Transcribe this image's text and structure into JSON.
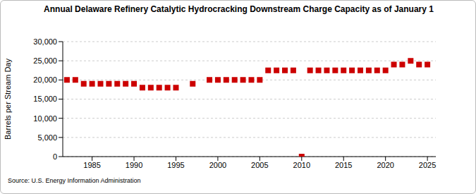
{
  "chart_data": {
    "type": "scatter",
    "title": "Annual Delaware Refinery Catalytic Hydrocracking Downstream Charge Capacity as of January 1",
    "y_label": "Barrels per Stream Day",
    "source": "Source: U.S. Energy Information Administration",
    "x": [
      1982,
      1983,
      1984,
      1985,
      1986,
      1987,
      1988,
      1989,
      1990,
      1991,
      1992,
      1993,
      1994,
      1995,
      1996,
      1997,
      1998,
      1999,
      2000,
      2001,
      2002,
      2003,
      2004,
      2005,
      2006,
      2007,
      2008,
      2009,
      2010,
      2011,
      2012,
      2013,
      2014,
      2015,
      2016,
      2017,
      2018,
      2019,
      2020,
      2021,
      2022,
      2023,
      2024,
      2025
    ],
    "values": [
      20000,
      20000,
      19000,
      19000,
      19000,
      19000,
      19000,
      19000,
      19000,
      18000,
      18000,
      18000,
      18000,
      18000,
      null,
      19000,
      null,
      20000,
      20000,
      20000,
      20000,
      20000,
      20000,
      20000,
      22500,
      22500,
      22500,
      22500,
      0,
      22500,
      22500,
      22500,
      22500,
      22500,
      22500,
      22500,
      22500,
      22500,
      22500,
      24000,
      24000,
      25000,
      24000,
      24000
    ],
    "color": "#cc0000",
    "marker": "square",
    "xlim": [
      1981.5,
      2026
    ],
    "xticks": [
      1985,
      1990,
      1995,
      2000,
      2005,
      2010,
      2015,
      2020,
      2025
    ],
    "ylim": [
      0,
      30000
    ],
    "yticks": [
      0,
      {
        "value": 5000,
        "label": "5,000"
      },
      {
        "value": 10000,
        "label": "10,000"
      },
      {
        "value": 15000,
        "label": "15,000"
      },
      {
        "value": 20000,
        "label": "20,000"
      },
      {
        "value": 25000,
        "label": "25,000"
      },
      {
        "value": 30000,
        "label": "30,000"
      }
    ],
    "grid": true
  }
}
